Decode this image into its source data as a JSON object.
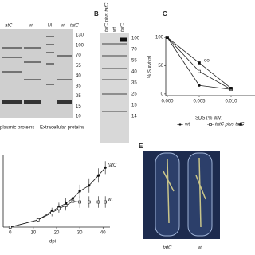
{
  "panel_A": {
    "col_labels": [
      "atC",
      "wt",
      "M",
      "wt",
      "tatC"
    ],
    "markers": [
      130,
      100,
      70,
      55,
      40,
      35,
      25,
      15,
      10
    ],
    "groups": [
      "plasmic proteins",
      "Extracellular proteins"
    ]
  },
  "panel_B": {
    "label": "B",
    "lane_labels": [
      "tatC plus tatC",
      "wt",
      "tatC"
    ],
    "markers": [
      100,
      70,
      55,
      40,
      35,
      25,
      15,
      14
    ]
  },
  "panel_C": {
    "label": "C",
    "y_label": "% Survival",
    "x_label": "SDS (% w/v)",
    "annotation": "oo",
    "xlim": [
      -0.00025,
      0.01375
    ],
    "ylim": [
      -3,
      103
    ],
    "xticks": [
      {
        "value": 0,
        "label": "0.000"
      },
      {
        "value": 0.005,
        "label": "0.005"
      },
      {
        "value": 0.01,
        "label": "0.010"
      }
    ],
    "yticks": [
      0,
      50,
      100
    ],
    "x": [
      0,
      0.005,
      0.01
    ],
    "series": [
      {
        "name": "wt",
        "values": [
          100,
          15,
          8
        ]
      },
      {
        "name": "tatC plus tatC",
        "values": [
          100,
          40,
          8
        ]
      },
      {
        "values": [
          100,
          55,
          10
        ]
      }
    ]
  },
  "panel_D": {
    "x_label": "dpi",
    "xlim": [
      -3,
      43
    ],
    "ylim": [
      0,
      100
    ],
    "xticks": [
      0,
      10,
      20,
      30,
      40
    ],
    "x": [
      0,
      12,
      18,
      21,
      24,
      27,
      30,
      34,
      38,
      41
    ],
    "series": [
      {
        "name": "tatC",
        "values": [
          0,
          10,
          22,
          28,
          33,
          40,
          50,
          58,
          72,
          83
        ],
        "errors": [
          1,
          3,
          5,
          6,
          7,
          8,
          9,
          10,
          10,
          9
        ]
      },
      {
        "name": "wt",
        "values": [
          0,
          10,
          20,
          26,
          30,
          36,
          35,
          35,
          35,
          35
        ],
        "errors": [
          1,
          3,
          5,
          6,
          7,
          8,
          8,
          8,
          8,
          8
        ]
      }
    ]
  },
  "panel_E": {
    "label": "E",
    "labels": [
      "tatC",
      "wt"
    ]
  }
}
